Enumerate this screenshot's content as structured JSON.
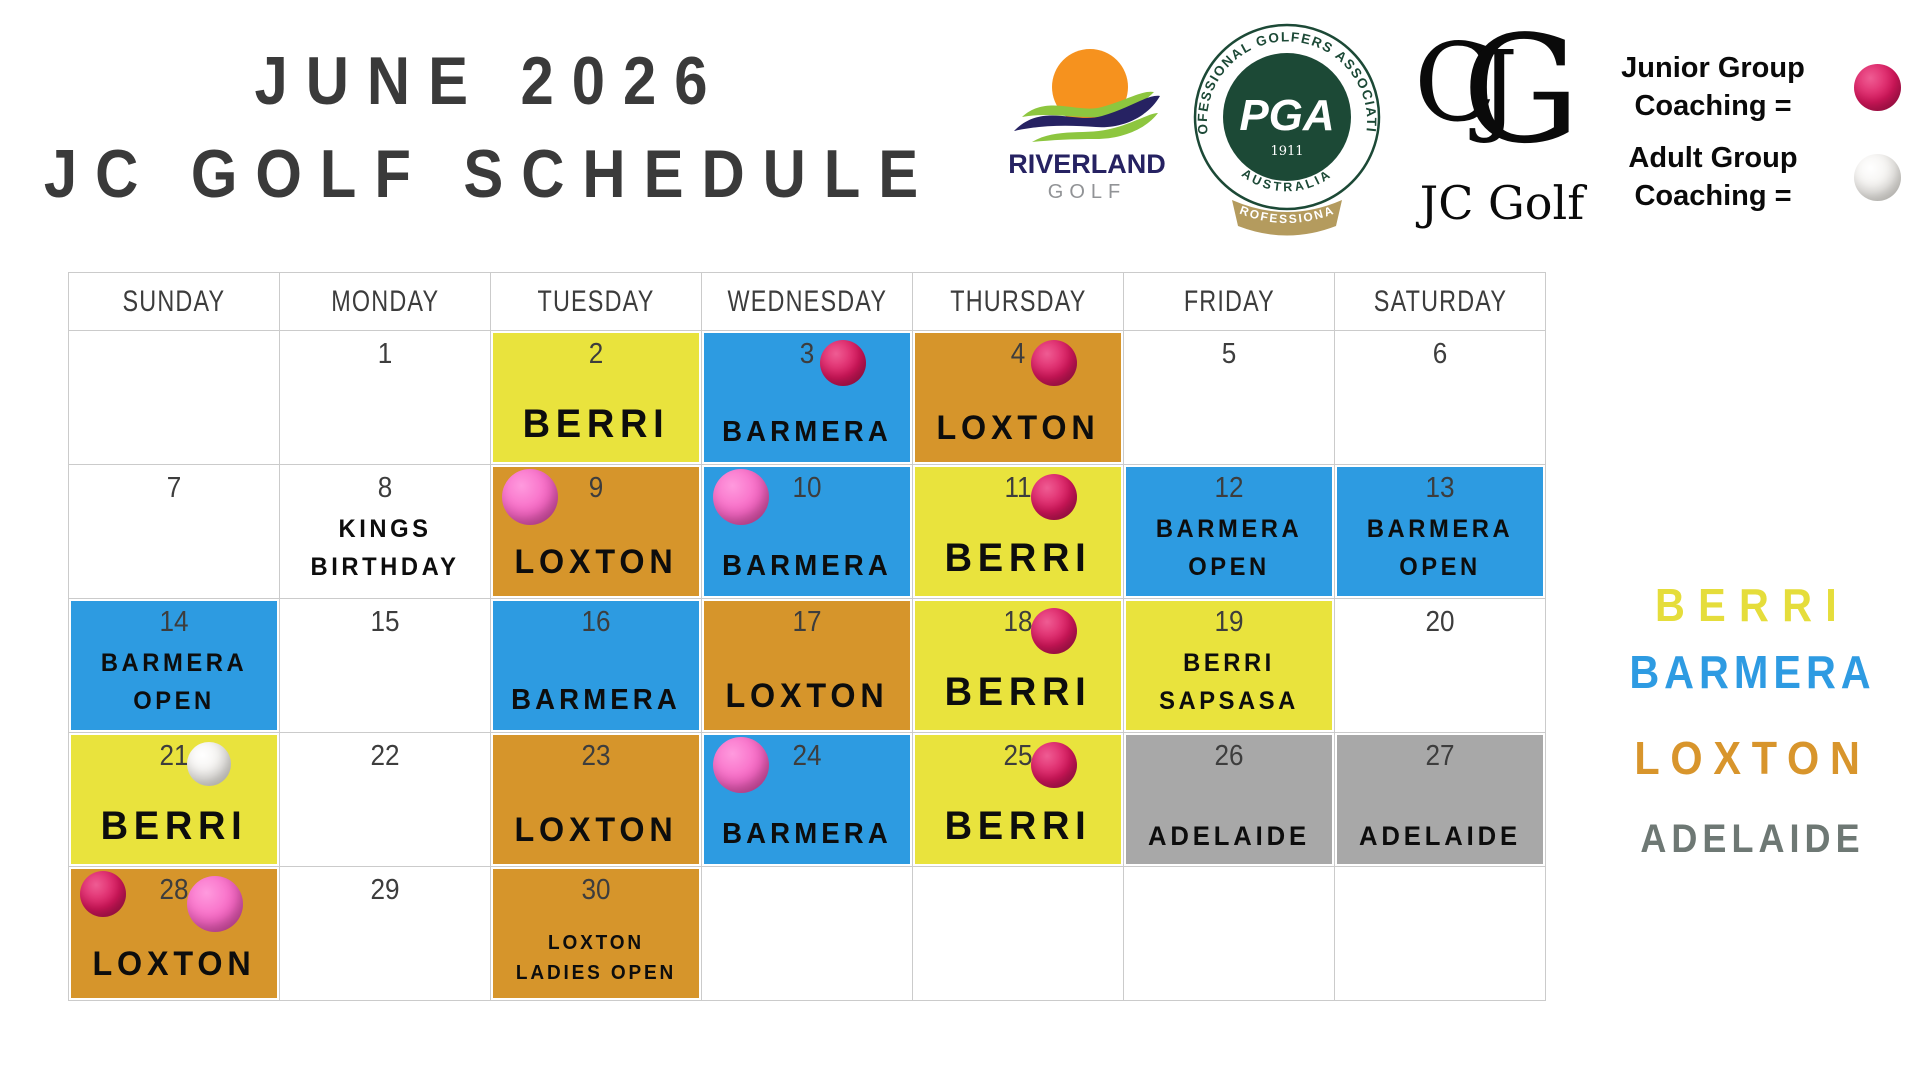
{
  "title": {
    "line1": "JUNE 2026",
    "line2": "JC GOLF SCHEDULE"
  },
  "logos": {
    "riverland": {
      "name": "RIVERLAND",
      "subtitle": "GOLF"
    },
    "pga": {
      "arc_text": "PROFESSIONAL GOLFERS ASSOCIATION",
      "acronym": "PGA",
      "year": "1911",
      "country": "AUSTRALIA",
      "banner": "PROFESSIONAL"
    },
    "jc_golf": {
      "letters": {
        "g": "G",
        "j": "J",
        "c": "C"
      },
      "wordmark": "JC Golf"
    }
  },
  "coaching_legend": {
    "junior": {
      "line1": "Junior Group",
      "line2": "Coaching ="
    },
    "adult": {
      "line1": "Adult Group",
      "line2": "Coaching ="
    }
  },
  "ball_colors": {
    "junior": {
      "light": "#ef5c93",
      "base": "#d8175d",
      "dark": "#9c0f42"
    },
    "junior_pink": {
      "light": "#ff9ade",
      "base": "#f666c3",
      "dark": "#c2398f"
    },
    "adult": {
      "light": "#ffffff",
      "base": "#f1efec",
      "dark": "#c9c7c0"
    }
  },
  "weekdays": [
    "SUNDAY",
    "MONDAY",
    "TUESDAY",
    "WEDNESDAY",
    "THURSDAY",
    "FRIDAY",
    "SATURDAY"
  ],
  "venue_colors": {
    "berri": "#e9e33d",
    "barmera": "#2d9be1",
    "loxton": "#d6952b",
    "adelaide": "#a8a8a8"
  },
  "venue_legend": [
    {
      "label": "BERRI",
      "color": "#e5dd3b"
    },
    {
      "label": "BARMERA",
      "color": "#2e9be2"
    },
    {
      "label": "LOXTON",
      "color": "#d8952c"
    },
    {
      "label": "ADELAIDE",
      "color": "#6e7874"
    }
  ],
  "weeks": [
    [
      {
        "day": "",
        "venue": null,
        "lines": [],
        "balls": []
      },
      {
        "day": "1",
        "venue": null,
        "lines": [],
        "balls": []
      },
      {
        "day": "2",
        "venue": "berri",
        "lines": [
          "BERRI"
        ],
        "balls": []
      },
      {
        "day": "3",
        "venue": "barmera",
        "lines": [
          "BARMERA"
        ],
        "balls": [
          {
            "type": "junior",
            "side": "right"
          }
        ]
      },
      {
        "day": "4",
        "venue": "loxton",
        "lines": [
          "LOXTON"
        ],
        "balls": [
          {
            "type": "junior",
            "side": "right"
          }
        ]
      },
      {
        "day": "5",
        "venue": null,
        "lines": [],
        "balls": []
      },
      {
        "day": "6",
        "venue": null,
        "lines": [],
        "balls": []
      }
    ],
    [
      {
        "day": "7",
        "venue": null,
        "lines": [],
        "balls": []
      },
      {
        "day": "8",
        "venue": null,
        "lines": [
          "KINGS",
          "BIRTHDAY"
        ],
        "balls": []
      },
      {
        "day": "9",
        "venue": "loxton",
        "lines": [
          "LOXTON"
        ],
        "balls": [
          {
            "type": "junior_pink",
            "side": "left"
          }
        ]
      },
      {
        "day": "10",
        "venue": "barmera",
        "lines": [
          "BARMERA"
        ],
        "balls": [
          {
            "type": "junior_pink",
            "side": "left"
          }
        ]
      },
      {
        "day": "11",
        "venue": "berri",
        "lines": [
          "BERRI"
        ],
        "balls": [
          {
            "type": "junior",
            "side": "right"
          }
        ]
      },
      {
        "day": "12",
        "venue": "barmera",
        "lines": [
          "BARMERA",
          "OPEN"
        ],
        "balls": []
      },
      {
        "day": "13",
        "venue": "barmera",
        "lines": [
          "BARMERA",
          "OPEN"
        ],
        "balls": []
      }
    ],
    [
      {
        "day": "14",
        "venue": "barmera",
        "lines": [
          "BARMERA",
          "OPEN"
        ],
        "balls": []
      },
      {
        "day": "15",
        "venue": null,
        "lines": [],
        "balls": []
      },
      {
        "day": "16",
        "venue": "barmera",
        "lines": [
          "BARMERA"
        ],
        "balls": []
      },
      {
        "day": "17",
        "venue": "loxton",
        "lines": [
          "LOXTON"
        ],
        "balls": []
      },
      {
        "day": "18",
        "venue": "berri",
        "lines": [
          "BERRI"
        ],
        "balls": [
          {
            "type": "junior",
            "side": "right"
          }
        ]
      },
      {
        "day": "19",
        "venue": "berri",
        "lines": [
          "BERRI",
          "SAPSASA"
        ],
        "balls": []
      },
      {
        "day": "20",
        "venue": null,
        "lines": [],
        "balls": []
      }
    ],
    [
      {
        "day": "21",
        "venue": "berri",
        "lines": [
          "BERRI"
        ],
        "balls": [
          {
            "type": "adult",
            "side": "right"
          }
        ]
      },
      {
        "day": "22",
        "venue": null,
        "lines": [],
        "balls": []
      },
      {
        "day": "23",
        "venue": "loxton",
        "lines": [
          "LOXTON"
        ],
        "balls": []
      },
      {
        "day": "24",
        "venue": "barmera",
        "lines": [
          "BARMERA"
        ],
        "balls": [
          {
            "type": "junior_pink",
            "side": "left"
          }
        ]
      },
      {
        "day": "25",
        "venue": "berri",
        "lines": [
          "BERRI"
        ],
        "balls": [
          {
            "type": "junior",
            "side": "right"
          }
        ]
      },
      {
        "day": "26",
        "venue": "adelaide",
        "lines": [
          "ADELAIDE"
        ],
        "balls": []
      },
      {
        "day": "27",
        "venue": "adelaide",
        "lines": [
          "ADELAIDE"
        ],
        "balls": []
      }
    ],
    [
      {
        "day": "28",
        "venue": "loxton",
        "lines": [
          "LOXTON"
        ],
        "balls": [
          {
            "type": "junior",
            "side": "left"
          },
          {
            "type": "junior_pink",
            "side": "right"
          }
        ]
      },
      {
        "day": "29",
        "venue": null,
        "lines": [],
        "balls": []
      },
      {
        "day": "30",
        "venue": "loxton",
        "lines": [
          "LOXTON",
          "LADIES OPEN"
        ],
        "balls": []
      },
      {
        "day": "",
        "venue": null,
        "lines": [],
        "balls": []
      },
      {
        "day": "",
        "venue": null,
        "lines": [],
        "balls": []
      },
      {
        "day": "",
        "venue": null,
        "lines": [],
        "balls": []
      },
      {
        "day": "",
        "venue": null,
        "lines": [],
        "balls": []
      }
    ]
  ]
}
